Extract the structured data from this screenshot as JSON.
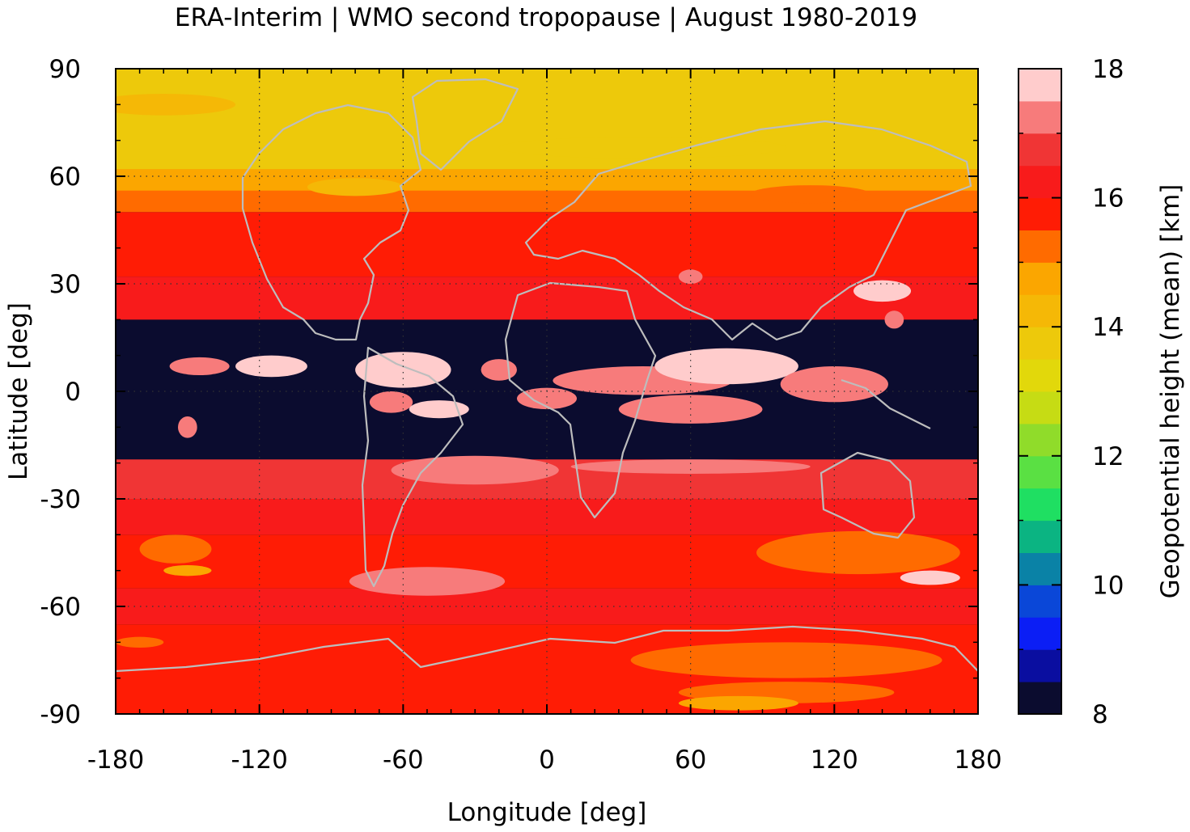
{
  "chart_data": {
    "type": "heatmap",
    "title": "ERA-Interim | WMO second tropopause | August 1980-2019",
    "xlabel": "Longitude [deg]",
    "ylabel": "Latitude [deg]",
    "colorbar_label": "Geopotential height (mean) [km]",
    "xlim": [
      -180,
      180
    ],
    "ylim": [
      -90,
      90
    ],
    "xticks": [
      "-180",
      "-120",
      "-60",
      "0",
      "60",
      "120",
      "180"
    ],
    "yticks": [
      "90",
      "60",
      "30",
      "0",
      "-30",
      "-60",
      "-90"
    ],
    "colorbar_range": [
      8,
      18
    ],
    "colorbar_ticks": [
      "18",
      "16",
      "14",
      "12",
      "10",
      "8"
    ],
    "colorbar_levels": [
      {
        "from": 8.0,
        "to": 8.5,
        "color": "#0b0c2f"
      },
      {
        "from": 8.5,
        "to": 9.0,
        "color": "#0a0ea0"
      },
      {
        "from": 9.0,
        "to": 9.5,
        "color": "#0b1ef5"
      },
      {
        "from": 9.5,
        "to": 10.0,
        "color": "#0a47d8"
      },
      {
        "from": 10.0,
        "to": 10.5,
        "color": "#0a82a6"
      },
      {
        "from": 10.5,
        "to": 11.0,
        "color": "#0bb482"
      },
      {
        "from": 11.0,
        "to": 11.5,
        "color": "#1fdf62"
      },
      {
        "from": 11.5,
        "to": 12.0,
        "color": "#5ae043"
      },
      {
        "from": 12.0,
        "to": 12.5,
        "color": "#90dc2a"
      },
      {
        "from": 12.5,
        "to": 13.0,
        "color": "#c6dc14"
      },
      {
        "from": 13.0,
        "to": 13.5,
        "color": "#e2d80b"
      },
      {
        "from": 13.5,
        "to": 14.0,
        "color": "#edc90b"
      },
      {
        "from": 14.0,
        "to": 14.5,
        "color": "#f5b806"
      },
      {
        "from": 14.5,
        "to": 15.0,
        "color": "#fba600"
      },
      {
        "from": 15.0,
        "to": 15.5,
        "color": "#ff6b00"
      },
      {
        "from": 15.5,
        "to": 16.0,
        "color": "#ff1c05"
      },
      {
        "from": 16.0,
        "to": 16.5,
        "color": "#f81b1b"
      },
      {
        "from": 16.5,
        "to": 17.0,
        "color": "#f03535"
      },
      {
        "from": 17.0,
        "to": 17.5,
        "color": "#f77b7b"
      },
      {
        "from": 17.5,
        "to": 18.0,
        "color": "#ffcccc"
      }
    ],
    "background_color": "#0b0c2f",
    "bands": [
      {
        "lat_min": 75,
        "lat_max": 90,
        "value": 13.75
      },
      {
        "lat_min": 60,
        "lat_max": 75,
        "value": 13.9
      },
      {
        "lat_min": 55,
        "lat_max": 62,
        "value": 14.6
      },
      {
        "lat_min": 50,
        "lat_max": 56,
        "value": 15.2
      },
      {
        "lat_min": 32,
        "lat_max": 50,
        "value": 15.8
      },
      {
        "lat_min": 20,
        "lat_max": 32,
        "value": 16.3
      },
      {
        "lat_min": -30,
        "lat_max": -19,
        "value": 16.8
      },
      {
        "lat_min": -40,
        "lat_max": -30,
        "value": 16.2
      },
      {
        "lat_min": -55,
        "lat_max": -40,
        "value": 15.8
      },
      {
        "lat_min": -65,
        "lat_max": -55,
        "value": 16.3
      },
      {
        "lat_min": -90,
        "lat_max": -65,
        "value": 15.8
      }
    ],
    "patches": [
      {
        "lon": -160,
        "lat": 80,
        "dlon": 60,
        "dlat": 6,
        "value": 14.2
      },
      {
        "lon": 40,
        "lat": 68,
        "dlon": 120,
        "dlat": 6,
        "value": 13.6
      },
      {
        "lon": -80,
        "lat": 57,
        "dlon": 40,
        "dlat": 5,
        "value": 14.2
      },
      {
        "lon": 110,
        "lat": 55,
        "dlon": 50,
        "dlat": 5,
        "value": 15.2
      },
      {
        "lon": 60,
        "lat": 32,
        "dlon": 10,
        "dlat": 4,
        "value": 17.2
      },
      {
        "lon": 140,
        "lat": 28,
        "dlon": 24,
        "dlat": 6,
        "value": 17.7
      },
      {
        "lon": 145,
        "lat": 20,
        "dlon": 8,
        "dlat": 5,
        "value": 17.2
      },
      {
        "lon": -30,
        "lat": -22,
        "dlon": 70,
        "dlat": 8,
        "value": 17.2
      },
      {
        "lon": 60,
        "lat": -21,
        "dlon": 100,
        "dlat": 4,
        "value": 17.2
      },
      {
        "lon": -155,
        "lat": -44,
        "dlon": 30,
        "dlat": 8,
        "value": 15.2
      },
      {
        "lon": 130,
        "lat": -45,
        "dlon": 85,
        "dlat": 12,
        "value": 15.2
      },
      {
        "lon": -150,
        "lat": -50,
        "dlon": 20,
        "dlat": 3,
        "value": 14.6
      },
      {
        "lon": -50,
        "lat": -53,
        "dlon": 65,
        "dlat": 8,
        "value": 17.2
      },
      {
        "lon": 160,
        "lat": -52,
        "dlon": 25,
        "dlat": 4,
        "value": 17.7
      },
      {
        "lon": 100,
        "lat": -75,
        "dlon": 130,
        "dlat": 10,
        "value": 15.2
      },
      {
        "lon": 100,
        "lat": -84,
        "dlon": 90,
        "dlat": 6,
        "value": 15.2
      },
      {
        "lon": 80,
        "lat": -87,
        "dlon": 50,
        "dlat": 4,
        "value": 14.6
      },
      {
        "lon": -170,
        "lat": -70,
        "dlon": 20,
        "dlat": 3,
        "value": 15.2
      }
    ],
    "tropical_patches": [
      {
        "lon": -145,
        "lat": 7,
        "dlon": 25,
        "dlat": 5,
        "value": 17.2
      },
      {
        "lon": -115,
        "lat": 7,
        "dlon": 30,
        "dlat": 6,
        "value": 17.7
      },
      {
        "lon": -150,
        "lat": -10,
        "dlon": 8,
        "dlat": 6,
        "value": 17.2
      },
      {
        "lon": -60,
        "lat": 6,
        "dlon": 40,
        "dlat": 10,
        "value": 17.7
      },
      {
        "lon": -65,
        "lat": -3,
        "dlon": 18,
        "dlat": 6,
        "value": 17.2
      },
      {
        "lon": -45,
        "lat": -5,
        "dlon": 25,
        "dlat": 5,
        "value": 17.7
      },
      {
        "lon": 40,
        "lat": 3,
        "dlon": 75,
        "dlat": 8,
        "value": 17.2
      },
      {
        "lon": 75,
        "lat": 7,
        "dlon": 60,
        "dlat": 10,
        "value": 17.7
      },
      {
        "lon": 60,
        "lat": -5,
        "dlon": 60,
        "dlat": 8,
        "value": 17.2
      },
      {
        "lon": 120,
        "lat": 2,
        "dlon": 45,
        "dlat": 10,
        "value": 17.2
      },
      {
        "lon": 0,
        "lat": -2,
        "dlon": 25,
        "dlat": 6,
        "value": 17.2
      },
      {
        "lon": -20,
        "lat": 6,
        "dlon": 15,
        "dlat": 6,
        "value": 17.2
      }
    ]
  }
}
